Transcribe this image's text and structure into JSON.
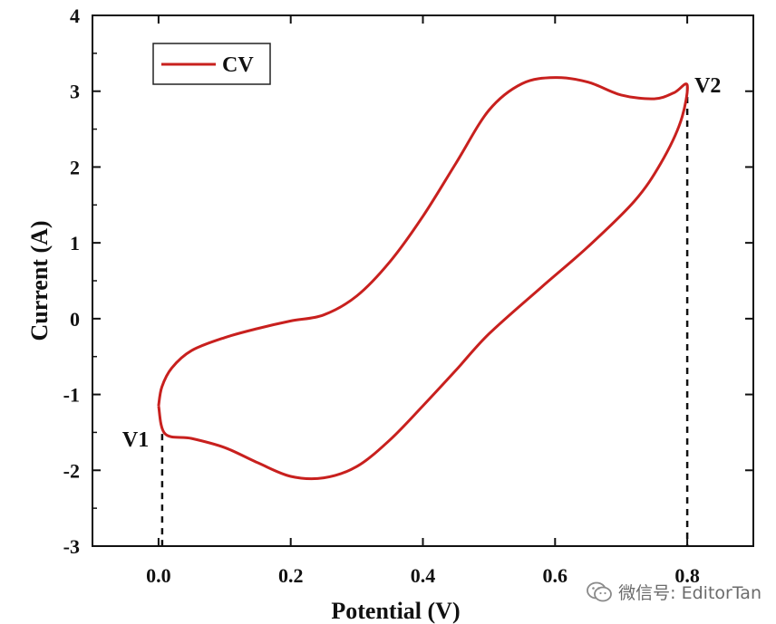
{
  "chart_data": {
    "type": "line",
    "xlabel": "Potential (V)",
    "ylabel": "Current (A)",
    "xlim": [
      -0.1,
      0.9
    ],
    "ylim": [
      -3,
      4
    ],
    "x_ticks": [
      0.0,
      0.2,
      0.4,
      0.6,
      0.8
    ],
    "x_tick_labels": [
      "0.0",
      "0.2",
      "0.4",
      "0.6",
      "0.8"
    ],
    "y_ticks": [
      -3,
      -2,
      -1,
      0,
      1,
      2,
      3,
      4
    ],
    "y_tick_labels": [
      "-3",
      "-2",
      "-1",
      "0",
      "1",
      "2",
      "3",
      "4"
    ],
    "legend": {
      "position": "top-left",
      "entries": [
        "CV"
      ]
    },
    "series": [
      {
        "name": "CV",
        "color": "#c8201e",
        "x": [
          0.0,
          0.005,
          0.02,
          0.05,
          0.1,
          0.15,
          0.2,
          0.25,
          0.3,
          0.35,
          0.4,
          0.45,
          0.5,
          0.55,
          0.6,
          0.65,
          0.7,
          0.75,
          0.78,
          0.8,
          0.79,
          0.76,
          0.72,
          0.65,
          0.58,
          0.5,
          0.45,
          0.4,
          0.35,
          0.3,
          0.25,
          0.2,
          0.15,
          0.1,
          0.05,
          0.01,
          0.0
        ],
        "y": [
          -1.15,
          -0.9,
          -0.65,
          -0.42,
          -0.25,
          -0.13,
          -0.03,
          0.05,
          0.3,
          0.75,
          1.35,
          2.05,
          2.75,
          3.1,
          3.18,
          3.12,
          2.95,
          2.9,
          2.98,
          3.08,
          2.6,
          2.05,
          1.55,
          0.95,
          0.42,
          -0.2,
          -0.68,
          -1.15,
          -1.6,
          -1.95,
          -2.1,
          -2.08,
          -1.9,
          -1.7,
          -1.58,
          -1.52,
          -1.15
        ]
      }
    ],
    "annotations": [
      {
        "text": "V1",
        "x": 0.0,
        "y": -1.52
      },
      {
        "text": "V2",
        "x": 0.8,
        "y": 3.08
      }
    ]
  },
  "watermark": {
    "text": "微信号: EditorTan",
    "icon": "wechat-icon"
  }
}
